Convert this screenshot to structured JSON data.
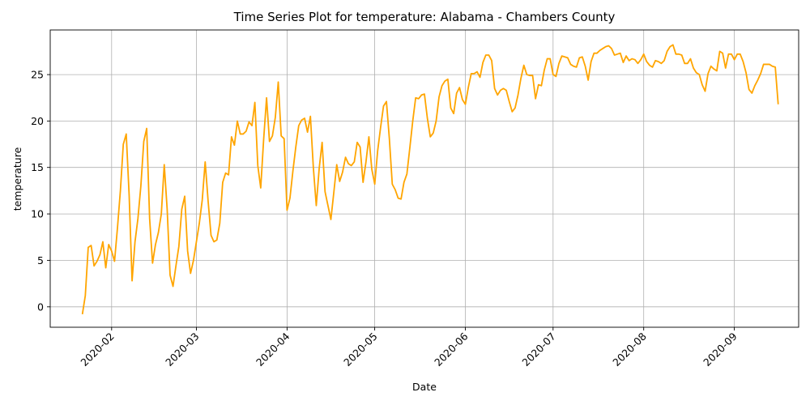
{
  "chart_data": {
    "type": "line",
    "title": "Time Series Plot for temperature: Alabama - Chambers County",
    "xlabel": "Date",
    "ylabel": "temperature",
    "x_tick_labels": [
      "2020-02",
      "2020-03",
      "2020-04",
      "2020-05",
      "2020-06",
      "2020-07",
      "2020-08",
      "2020-09"
    ],
    "x_tick_dates": [
      "2020-02-01",
      "2020-03-01",
      "2020-04-01",
      "2020-05-01",
      "2020-06-01",
      "2020-07-01",
      "2020-08-01",
      "2020-09-01"
    ],
    "y_ticks": [
      0,
      5,
      10,
      15,
      20,
      25
    ],
    "xlim": [
      "2020-01-11",
      "2020-09-23"
    ],
    "ylim": [
      -2.2,
      29.8
    ],
    "grid": true,
    "line_color": "#ffa500",
    "series": [
      {
        "points": [
          [
            "2020-01-22",
            -0.8
          ],
          [
            "2020-01-23",
            1.2
          ],
          [
            "2020-01-24",
            6.4
          ],
          [
            "2020-01-25",
            6.6
          ],
          [
            "2020-01-26",
            4.4
          ],
          [
            "2020-01-27",
            4.9
          ],
          [
            "2020-01-28",
            5.6
          ],
          [
            "2020-01-29",
            7.0
          ],
          [
            "2020-01-30",
            4.2
          ],
          [
            "2020-01-31",
            6.7
          ],
          [
            "2020-02-01",
            6.0
          ],
          [
            "2020-02-02",
            4.9
          ],
          [
            "2020-02-03",
            8.5
          ],
          [
            "2020-02-04",
            12.5
          ],
          [
            "2020-02-05",
            17.5
          ],
          [
            "2020-02-06",
            18.6
          ],
          [
            "2020-02-07",
            12.0
          ],
          [
            "2020-02-08",
            2.8
          ],
          [
            "2020-02-09",
            7.0
          ],
          [
            "2020-02-10",
            9.5
          ],
          [
            "2020-02-11",
            13.0
          ],
          [
            "2020-02-12",
            17.8
          ],
          [
            "2020-02-13",
            19.2
          ],
          [
            "2020-02-14",
            9.5
          ],
          [
            "2020-02-15",
            4.7
          ],
          [
            "2020-02-16",
            6.7
          ],
          [
            "2020-02-17",
            8.0
          ],
          [
            "2020-02-18",
            10.0
          ],
          [
            "2020-02-19",
            15.3
          ],
          [
            "2020-02-20",
            10.5
          ],
          [
            "2020-02-21",
            3.4
          ],
          [
            "2020-02-22",
            2.2
          ],
          [
            "2020-02-23",
            4.4
          ],
          [
            "2020-02-24",
            6.5
          ],
          [
            "2020-02-25",
            10.5
          ],
          [
            "2020-02-26",
            11.9
          ],
          [
            "2020-02-27",
            6.0
          ],
          [
            "2020-02-28",
            3.6
          ],
          [
            "2020-02-29",
            5.0
          ],
          [
            "2020-03-01",
            7.0
          ],
          [
            "2020-03-02",
            9.0
          ],
          [
            "2020-03-03",
            11.5
          ],
          [
            "2020-03-04",
            15.6
          ],
          [
            "2020-03-05",
            11.4
          ],
          [
            "2020-03-06",
            7.7
          ],
          [
            "2020-03-07",
            7.0
          ],
          [
            "2020-03-08",
            7.2
          ],
          [
            "2020-03-09",
            9.0
          ],
          [
            "2020-03-10",
            13.4
          ],
          [
            "2020-03-11",
            14.4
          ],
          [
            "2020-03-12",
            14.2
          ],
          [
            "2020-03-13",
            18.3
          ],
          [
            "2020-03-14",
            17.4
          ],
          [
            "2020-03-15",
            20.0
          ],
          [
            "2020-03-16",
            18.6
          ],
          [
            "2020-03-17",
            18.6
          ],
          [
            "2020-03-18",
            18.9
          ],
          [
            "2020-03-19",
            19.9
          ],
          [
            "2020-03-20",
            19.5
          ],
          [
            "2020-03-21",
            22.0
          ],
          [
            "2020-03-22",
            15.2
          ],
          [
            "2020-03-23",
            12.8
          ],
          [
            "2020-03-24",
            18.0
          ],
          [
            "2020-03-25",
            22.5
          ],
          [
            "2020-03-26",
            17.8
          ],
          [
            "2020-03-27",
            18.4
          ],
          [
            "2020-03-28",
            20.4
          ],
          [
            "2020-03-29",
            24.2
          ],
          [
            "2020-03-30",
            18.4
          ],
          [
            "2020-03-31",
            18.1
          ],
          [
            "2020-04-01",
            10.4
          ],
          [
            "2020-04-02",
            11.7
          ],
          [
            "2020-04-03",
            14.6
          ],
          [
            "2020-04-04",
            17.2
          ],
          [
            "2020-04-05",
            19.5
          ],
          [
            "2020-04-06",
            20.1
          ],
          [
            "2020-04-07",
            20.3
          ],
          [
            "2020-04-08",
            18.8
          ],
          [
            "2020-04-09",
            20.5
          ],
          [
            "2020-04-10",
            15.0
          ],
          [
            "2020-04-11",
            10.9
          ],
          [
            "2020-04-12",
            14.9
          ],
          [
            "2020-04-13",
            17.7
          ],
          [
            "2020-04-14",
            12.4
          ],
          [
            "2020-04-15",
            10.9
          ],
          [
            "2020-04-16",
            9.4
          ],
          [
            "2020-04-17",
            12.3
          ],
          [
            "2020-04-18",
            15.3
          ],
          [
            "2020-04-19",
            13.5
          ],
          [
            "2020-04-20",
            14.5
          ],
          [
            "2020-04-21",
            16.1
          ],
          [
            "2020-04-22",
            15.4
          ],
          [
            "2020-04-23",
            15.2
          ],
          [
            "2020-04-24",
            15.6
          ],
          [
            "2020-04-25",
            17.7
          ],
          [
            "2020-04-26",
            17.2
          ],
          [
            "2020-04-27",
            13.4
          ],
          [
            "2020-04-28",
            15.6
          ],
          [
            "2020-04-29",
            18.3
          ],
          [
            "2020-04-30",
            14.8
          ],
          [
            "2020-05-01",
            13.2
          ],
          [
            "2020-05-02",
            16.8
          ],
          [
            "2020-05-03",
            19.3
          ],
          [
            "2020-05-04",
            21.6
          ],
          [
            "2020-05-05",
            22.1
          ],
          [
            "2020-05-06",
            18.1
          ],
          [
            "2020-05-07",
            13.2
          ],
          [
            "2020-05-08",
            12.6
          ],
          [
            "2020-05-09",
            11.7
          ],
          [
            "2020-05-10",
            11.6
          ],
          [
            "2020-05-11",
            13.4
          ],
          [
            "2020-05-12",
            14.3
          ],
          [
            "2020-05-13",
            17.1
          ],
          [
            "2020-05-14",
            20.0
          ],
          [
            "2020-05-15",
            22.5
          ],
          [
            "2020-05-16",
            22.4
          ],
          [
            "2020-05-17",
            22.8
          ],
          [
            "2020-05-18",
            22.9
          ],
          [
            "2020-05-19",
            20.3
          ],
          [
            "2020-05-20",
            18.3
          ],
          [
            "2020-05-21",
            18.7
          ],
          [
            "2020-05-22",
            20.0
          ],
          [
            "2020-05-23",
            22.6
          ],
          [
            "2020-05-24",
            23.8
          ],
          [
            "2020-05-25",
            24.3
          ],
          [
            "2020-05-26",
            24.5
          ],
          [
            "2020-05-27",
            21.4
          ],
          [
            "2020-05-28",
            20.8
          ],
          [
            "2020-05-29",
            23.0
          ],
          [
            "2020-05-30",
            23.6
          ],
          [
            "2020-05-31",
            22.3
          ],
          [
            "2020-06-01",
            21.8
          ],
          [
            "2020-06-02",
            23.6
          ],
          [
            "2020-06-03",
            25.1
          ],
          [
            "2020-06-04",
            25.1
          ],
          [
            "2020-06-05",
            25.3
          ],
          [
            "2020-06-06",
            24.7
          ],
          [
            "2020-06-07",
            26.3
          ],
          [
            "2020-06-08",
            27.1
          ],
          [
            "2020-06-09",
            27.1
          ],
          [
            "2020-06-10",
            26.5
          ],
          [
            "2020-06-11",
            23.5
          ],
          [
            "2020-06-12",
            22.8
          ],
          [
            "2020-06-13",
            23.3
          ],
          [
            "2020-06-14",
            23.5
          ],
          [
            "2020-06-15",
            23.3
          ],
          [
            "2020-06-16",
            22.1
          ],
          [
            "2020-06-17",
            21.0
          ],
          [
            "2020-06-18",
            21.4
          ],
          [
            "2020-06-19",
            22.8
          ],
          [
            "2020-06-20",
            24.6
          ],
          [
            "2020-06-21",
            26.0
          ],
          [
            "2020-06-22",
            25.0
          ],
          [
            "2020-06-23",
            24.9
          ],
          [
            "2020-06-24",
            24.9
          ],
          [
            "2020-06-25",
            22.4
          ],
          [
            "2020-06-26",
            23.9
          ],
          [
            "2020-06-27",
            23.8
          ],
          [
            "2020-06-28",
            25.5
          ],
          [
            "2020-06-29",
            26.7
          ],
          [
            "2020-06-30",
            26.7
          ],
          [
            "2020-07-01",
            25.0
          ],
          [
            "2020-07-02",
            24.8
          ],
          [
            "2020-07-03",
            26.2
          ],
          [
            "2020-07-04",
            27.0
          ],
          [
            "2020-07-05",
            26.9
          ],
          [
            "2020-07-06",
            26.8
          ],
          [
            "2020-07-07",
            26.1
          ],
          [
            "2020-07-08",
            25.9
          ],
          [
            "2020-07-09",
            25.8
          ],
          [
            "2020-07-10",
            26.8
          ],
          [
            "2020-07-11",
            26.9
          ],
          [
            "2020-07-12",
            25.9
          ],
          [
            "2020-07-13",
            24.4
          ],
          [
            "2020-07-14",
            26.4
          ],
          [
            "2020-07-15",
            27.3
          ],
          [
            "2020-07-16",
            27.3
          ],
          [
            "2020-07-17",
            27.6
          ],
          [
            "2020-07-18",
            27.8
          ],
          [
            "2020-07-19",
            28.0
          ],
          [
            "2020-07-20",
            28.1
          ],
          [
            "2020-07-21",
            27.8
          ],
          [
            "2020-07-22",
            27.1
          ],
          [
            "2020-07-23",
            27.2
          ],
          [
            "2020-07-24",
            27.3
          ],
          [
            "2020-07-25",
            26.3
          ],
          [
            "2020-07-26",
            27.0
          ],
          [
            "2020-07-27",
            26.5
          ],
          [
            "2020-07-28",
            26.7
          ],
          [
            "2020-07-29",
            26.6
          ],
          [
            "2020-07-30",
            26.2
          ],
          [
            "2020-07-31",
            26.6
          ],
          [
            "2020-08-01",
            27.2
          ],
          [
            "2020-08-02",
            26.4
          ],
          [
            "2020-08-03",
            26.0
          ],
          [
            "2020-08-04",
            25.8
          ],
          [
            "2020-08-05",
            26.5
          ],
          [
            "2020-08-06",
            26.4
          ],
          [
            "2020-08-07",
            26.2
          ],
          [
            "2020-08-08",
            26.5
          ],
          [
            "2020-08-09",
            27.5
          ],
          [
            "2020-08-10",
            28.0
          ],
          [
            "2020-08-11",
            28.2
          ],
          [
            "2020-08-12",
            27.2
          ],
          [
            "2020-08-13",
            27.2
          ],
          [
            "2020-08-14",
            27.1
          ],
          [
            "2020-08-15",
            26.2
          ],
          [
            "2020-08-16",
            26.2
          ],
          [
            "2020-08-17",
            26.7
          ],
          [
            "2020-08-18",
            25.7
          ],
          [
            "2020-08-19",
            25.2
          ],
          [
            "2020-08-20",
            25.0
          ],
          [
            "2020-08-21",
            23.9
          ],
          [
            "2020-08-22",
            23.2
          ],
          [
            "2020-08-23",
            25.1
          ],
          [
            "2020-08-24",
            25.9
          ],
          [
            "2020-08-25",
            25.6
          ],
          [
            "2020-08-26",
            25.4
          ],
          [
            "2020-08-27",
            27.5
          ],
          [
            "2020-08-28",
            27.3
          ],
          [
            "2020-08-29",
            25.7
          ],
          [
            "2020-08-30",
            27.2
          ],
          [
            "2020-08-31",
            27.2
          ],
          [
            "2020-09-01",
            26.6
          ],
          [
            "2020-09-02",
            27.2
          ],
          [
            "2020-09-03",
            27.2
          ],
          [
            "2020-09-04",
            26.4
          ],
          [
            "2020-09-05",
            25.2
          ],
          [
            "2020-09-06",
            23.4
          ],
          [
            "2020-09-07",
            23.0
          ],
          [
            "2020-09-08",
            23.8
          ],
          [
            "2020-09-09",
            24.4
          ],
          [
            "2020-09-10",
            25.1
          ],
          [
            "2020-09-11",
            26.1
          ],
          [
            "2020-09-12",
            26.1
          ],
          [
            "2020-09-13",
            26.1
          ],
          [
            "2020-09-14",
            25.9
          ],
          [
            "2020-09-15",
            25.8
          ],
          [
            "2020-09-16",
            21.8
          ]
        ]
      }
    ]
  }
}
